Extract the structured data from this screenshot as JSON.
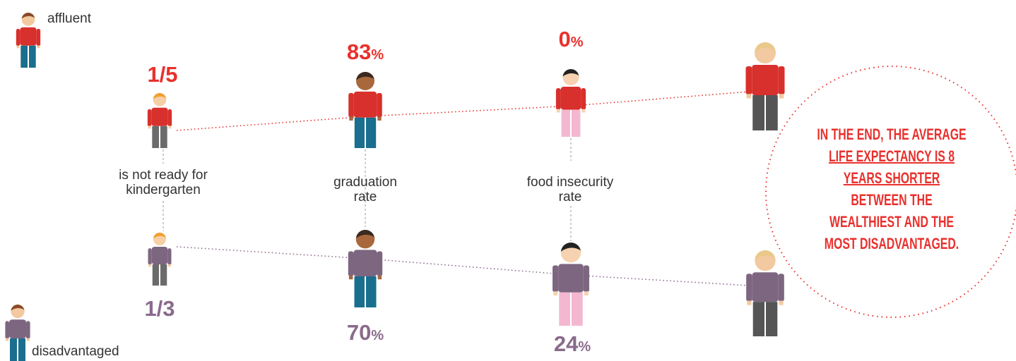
{
  "legend": {
    "affluent": "affluent",
    "disadvantaged": "disadvantaged"
  },
  "stats": [
    {
      "top": {
        "value": "1/5",
        "unit": ""
      },
      "label": [
        "is not ready for",
        "kindergarten"
      ],
      "bottom": {
        "value": "1/3",
        "unit": ""
      }
    },
    {
      "top": {
        "value": "83",
        "unit": "%"
      },
      "label": [
        "graduation",
        "rate"
      ],
      "bottom": {
        "value": "70",
        "unit": "%"
      }
    },
    {
      "top": {
        "value": "0",
        "unit": "%"
      },
      "label": [
        "food insecurity",
        "rate"
      ],
      "bottom": {
        "value": "24",
        "unit": "%"
      }
    }
  ],
  "callout": [
    "IN THE END, THE AVERAGE ",
    "LIFE EXPECTANCY IS 8 YEARS SHORTER",
    " BETWEEN THE WEALTHIEST AND THE MOST DISADVANTAGED."
  ]
}
